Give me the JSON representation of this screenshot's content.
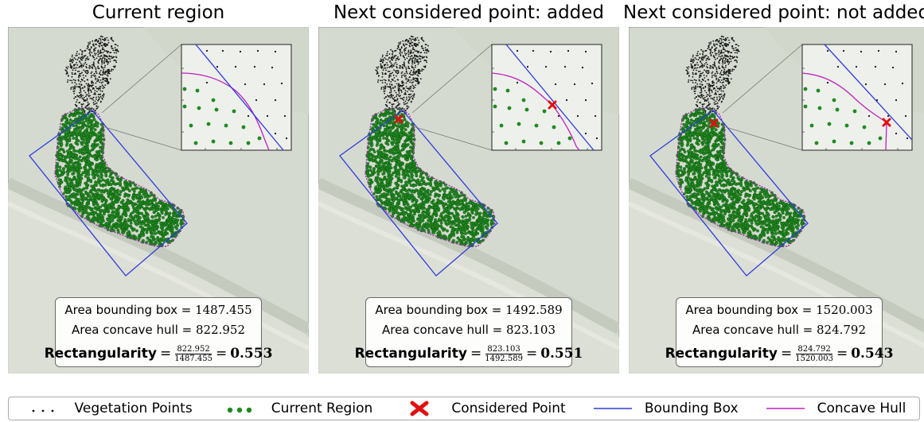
{
  "panels": [
    {
      "title": "Current region",
      "area_bbox_label": "Area bounding box",
      "area_bbox": "1487.455",
      "area_hull_label": "Area concave hull",
      "area_hull": "822.952",
      "rect_label": "Rectangularity",
      "rect_num": "822.952",
      "rect_den": "1487.455",
      "rect_value": "0.553",
      "considered": "none"
    },
    {
      "title": "Next considered point: added",
      "area_bbox_label": "Area bounding box",
      "area_bbox": "1492.589",
      "area_hull_label": "Area concave hull",
      "area_hull": "823.103",
      "rect_label": "Rectangularity",
      "rect_num": "823.103",
      "rect_den": "1492.589",
      "rect_value": "0.551",
      "considered": "added"
    },
    {
      "title": "Next considered point: not added",
      "area_bbox_label": "Area bounding box",
      "area_bbox": "1520.003",
      "area_hull_label": "Area concave hull",
      "area_hull": "824.792",
      "rect_label": "Rectangularity",
      "rect_num": "824.792",
      "rect_den": "1520.003",
      "rect_value": "0.543",
      "considered": "not-added"
    }
  ],
  "legend": {
    "vegetation": "Vegetation Points",
    "current_region": "Current Region",
    "considered": "Considered Point",
    "bbox": "Bounding Box",
    "hull": "Concave Hull"
  },
  "colors": {
    "vegetation": "#111111",
    "current_region": "#1f8a1f",
    "considered": "#e01010",
    "bbox": "#2d3bdc",
    "hull": "#c020c0"
  }
}
